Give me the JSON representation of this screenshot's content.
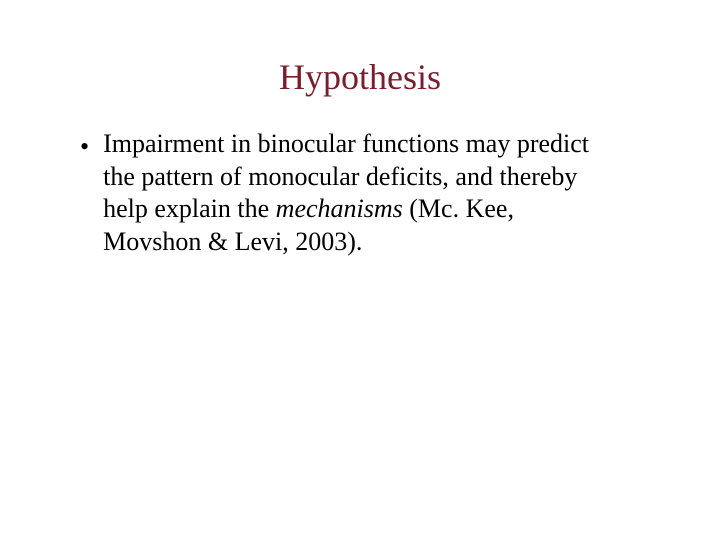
{
  "slide": {
    "title": "Hypothesis",
    "title_color": "#7a1e2e",
    "title_fontsize": 36,
    "body_fontsize": 26,
    "body_color": "#000000",
    "background_color": "#ffffff",
    "bullet_symbol": "•",
    "body_text_pre": "Impairment in binocular functions may predict the pattern of monocular deficits, and thereby help explain the ",
    "body_text_italic": "mechanisms",
    "body_text_post": " (Mc. Kee, Movshon & Levi, 2003)."
  }
}
